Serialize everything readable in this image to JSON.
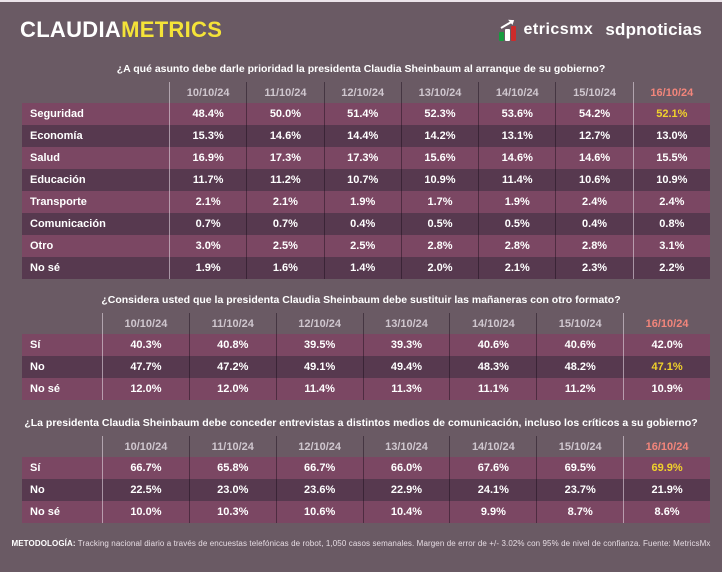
{
  "header": {
    "brand": {
      "claudia": "CLAUDIA",
      "metrics": "METRICS"
    },
    "logos": {
      "metricsmx": "etricsmx",
      "sdpnoticias": "sdpnoticias"
    }
  },
  "footer": {
    "label": "METODOLOGÍA:",
    "text": " Tracking nacional diario a través de encuestas telefónicas de robot, 1,050 casos semanales. Margen de error de +/- 3.02% con 95% de nivel de confianza. Fuente: MetricsMx"
  },
  "colors": {
    "background": "#6a5a64",
    "row_light": "#7b4763",
    "row_dark": "#57394f",
    "accent_yellow": "#f0d22b",
    "date_current": "#f2857b",
    "date_past": "#cfc6ce",
    "brand_yellow": "#f4e338",
    "flag_green": "#169b3e",
    "flag_red": "#ce2b2b"
  },
  "chart_data": [
    {
      "type": "table",
      "title": "¿A qué asunto debe darle prioridad la presidenta Claudia Sheinbaum al arranque de su gobierno?",
      "unit": "%",
      "columns": [
        "10/10/24",
        "11/10/24",
        "12/10/24",
        "13/10/24",
        "14/10/24",
        "15/10/24",
        "16/10/24"
      ],
      "rows": [
        {
          "label": "Seguridad",
          "values": [
            48.4,
            50.0,
            51.4,
            52.3,
            53.6,
            54.2,
            52.1
          ],
          "highlight_last": true
        },
        {
          "label": "Economía",
          "values": [
            15.3,
            14.6,
            14.4,
            14.2,
            13.1,
            12.7,
            13.0
          ],
          "highlight_last": false
        },
        {
          "label": "Salud",
          "values": [
            16.9,
            17.3,
            17.3,
            15.6,
            14.6,
            14.6,
            15.5
          ],
          "highlight_last": false
        },
        {
          "label": "Educación",
          "values": [
            11.7,
            11.2,
            10.7,
            10.9,
            11.4,
            10.6,
            10.9
          ],
          "highlight_last": false
        },
        {
          "label": "Transporte",
          "values": [
            2.1,
            2.1,
            1.9,
            1.7,
            1.9,
            2.4,
            2.4
          ],
          "highlight_last": false
        },
        {
          "label": "Comunicación",
          "values": [
            0.7,
            0.7,
            0.4,
            0.5,
            0.5,
            0.4,
            0.8
          ],
          "highlight_last": false
        },
        {
          "label": "Otro",
          "values": [
            3.0,
            2.5,
            2.5,
            2.8,
            2.8,
            2.8,
            3.1
          ],
          "highlight_last": false
        },
        {
          "label": "No sé",
          "values": [
            1.9,
            1.6,
            1.4,
            2.0,
            2.1,
            2.3,
            2.2
          ],
          "highlight_last": false
        }
      ]
    },
    {
      "type": "table",
      "title": "¿Considera usted que la presidenta Claudia Sheinbaum debe sustituir las mañaneras con otro formato?",
      "unit": "%",
      "columns": [
        "10/10/24",
        "11/10/24",
        "12/10/24",
        "13/10/24",
        "14/10/24",
        "15/10/24",
        "16/10/24"
      ],
      "rows": [
        {
          "label": "Sí",
          "values": [
            40.3,
            40.8,
            39.5,
            39.3,
            40.6,
            40.6,
            42.0
          ],
          "highlight_last": false
        },
        {
          "label": "No",
          "values": [
            47.7,
            47.2,
            49.1,
            49.4,
            48.3,
            48.2,
            47.1
          ],
          "highlight_last": true
        },
        {
          "label": "No sé",
          "values": [
            12.0,
            12.0,
            11.4,
            11.3,
            11.1,
            11.2,
            10.9
          ],
          "highlight_last": false
        }
      ]
    },
    {
      "type": "table",
      "title": "¿La presidenta Claudia Sheinbaum debe conceder entrevistas a distintos medios de comunicación, incluso los críticos a su gobierno?",
      "unit": "%",
      "columns": [
        "10/10/24",
        "11/10/24",
        "12/10/24",
        "13/10/24",
        "14/10/24",
        "15/10/24",
        "16/10/24"
      ],
      "rows": [
        {
          "label": "Sí",
          "values": [
            66.7,
            65.8,
            66.7,
            66.0,
            67.6,
            69.5,
            69.9
          ],
          "highlight_last": true
        },
        {
          "label": "No",
          "values": [
            22.5,
            23.0,
            23.6,
            22.9,
            24.1,
            23.7,
            21.9
          ],
          "highlight_last": false
        },
        {
          "label": "No sé",
          "values": [
            10.0,
            10.3,
            10.6,
            10.4,
            9.9,
            8.7,
            8.6
          ],
          "highlight_last": false
        }
      ]
    }
  ]
}
